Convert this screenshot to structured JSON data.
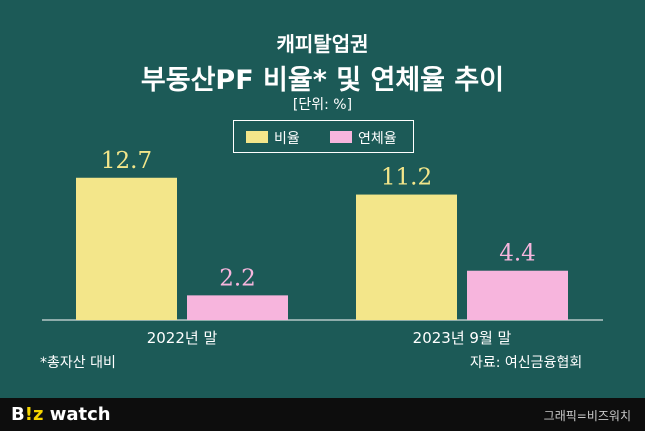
{
  "header": {
    "supertitle": "캐피탈업권",
    "title": "부동산PF 비율* 및 연체율 추이",
    "unit": "[단위: %]"
  },
  "footnote": "*총자산 대비",
  "source": "자료: 여신금융협회",
  "footer": {
    "logo_a": "B",
    "logo_b": "!z",
    "logo_c": " watch",
    "credit": "그래픽=비즈워치"
  },
  "colors": {
    "background": "#1c5a57",
    "ratio": "#f3e68a",
    "delinquency": "#f7b5dd",
    "delinquency_label": "#f7b5dd",
    "ratio_label": "#f3e68a"
  },
  "chart_data": {
    "type": "bar",
    "categories": [
      "2022년 말",
      "2023년 9월 말"
    ],
    "series": [
      {
        "name": "비율",
        "values": [
          12.7,
          11.2
        ]
      },
      {
        "name": "연체율",
        "values": [
          2.2,
          4.4
        ]
      }
    ],
    "legend_position": "top-center",
    "grid": false
  }
}
